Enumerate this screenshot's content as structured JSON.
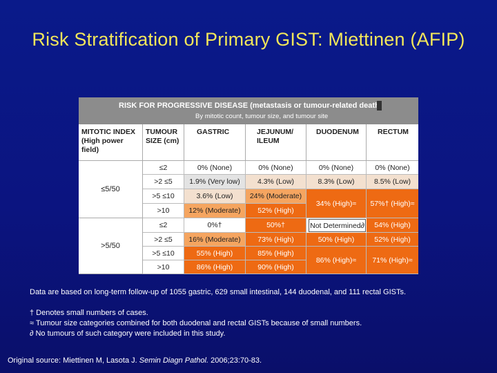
{
  "title": "Risk Stratification of Primary GIST: Miettinen (AFIP)",
  "table": {
    "header_main": "RISK FOR PROGRESSIVE DISEASE (metastasis or tumour-related death)",
    "header_sub": "By mitotic count, tumour size, and tumour site",
    "columns": [
      "MITOTIC INDEX (High power field)",
      "TUMOUR SIZE (cm)",
      "GASTRIC",
      "JEJUNUM/ ILEUM",
      "DUODENUM",
      "RECTUM"
    ],
    "mitotic_groups": [
      "≤5/50",
      ">5/50"
    ],
    "sizes": [
      "≤2",
      ">2 ≤5",
      ">5 ≤10",
      ">10",
      "≤2",
      ">2 ≤5",
      ">5 ≤10",
      ">10"
    ],
    "gastric": [
      "0% (None)",
      "1.9% (Very low)",
      "3.6% (Low)",
      "12% (Moderate)",
      "0%†",
      "16% (Moderate)",
      "55% (High)",
      "86% (High)"
    ],
    "jejunum": [
      "0% (None)",
      "4.3% (Low)",
      "24% (Moderate)",
      "52% (High)",
      "50%†",
      "73% (High)",
      "85% (High)",
      "90% (High)"
    ],
    "duodenum": [
      "0% (None)",
      "8.3% (Low)",
      "34% (High)≈",
      "Not Determined∂",
      "50% (High)",
      "86% (High)≈"
    ],
    "rectum": [
      "0% (None)",
      "8.5% (Low)",
      "57%† (High)≈",
      "54% (High)",
      "52% (High)",
      "71% (High)≈"
    ]
  },
  "notes": {
    "data_basis": "Data are based on long-term follow-up of 1055 gastric, 629 small intestinal, 144 duodenal, and 111 rectal GISTs.",
    "dagger": "† Denotes small numbers of cases.",
    "approx": "≈ Tumour size categories combined for both duodenal and rectal GISTs because of small numbers.",
    "partial": "∂ No tumours of such category were included in this study."
  },
  "source": {
    "prefix": "Original source: Miettinen M, Lasota J. ",
    "journal": "Semin Diagn Pathol.",
    "suffix": " 2006;23:70-83."
  },
  "colors": {
    "background": "#0b1480",
    "title": "#f2e65a",
    "high": "#ee6a13",
    "moderate": "#f5a560",
    "low": "#f3e0cf",
    "header": "#8c8c8c"
  }
}
